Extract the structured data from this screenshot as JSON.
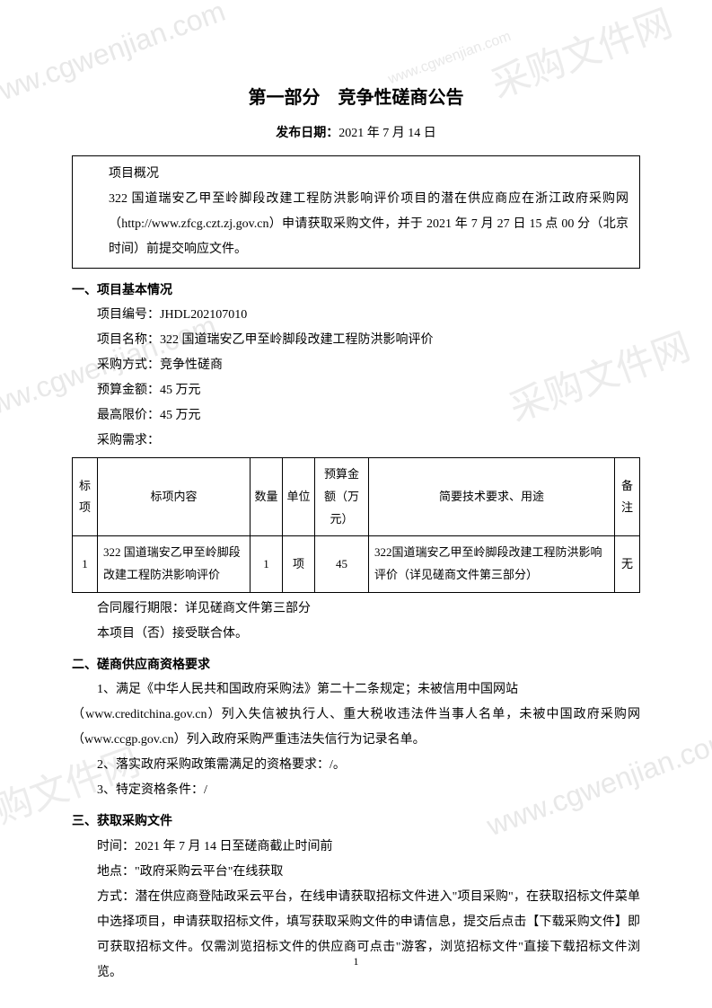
{
  "title": "第一部分　竞争性磋商公告",
  "publishLabel": "发布日期：",
  "publishDate": "2021 年 7 月 14 日",
  "overview": {
    "heading": "项目概况",
    "body": "322 国道瑞安乙甲至岭脚段改建工程防洪影响评价项目的潜在供应商应在浙江政府采购网（http://www.zfcg.czt.zj.gov.cn）申请获取采购文件，并于 2021 年 7 月 27 日 15 点 00 分（北京时间）前提交响应文件。"
  },
  "section1": {
    "heading": "一、项目基本情况",
    "projectNoLabel": "项目编号：",
    "projectNo": "JHDL202107010",
    "projectNameLabel": "项目名称：",
    "projectName": "322 国道瑞安乙甲至岭脚段改建工程防洪影响评价",
    "methodLabel": "采购方式：",
    "method": "竞争性磋商",
    "budgetLabel": "预算金额：",
    "budget": "45 万元",
    "maxLabel": "最高限价：",
    "max": "45 万元",
    "needsLabel": "采购需求：",
    "table": {
      "headers": {
        "id": "标项",
        "content": "标项内容",
        "qty": "数量",
        "unit": "单位",
        "budget": "预算金额（万元）",
        "tech": "简要技术要求、用途",
        "note": "备注"
      },
      "row": {
        "id": "1",
        "content": "322 国道瑞安乙甲至岭脚段改建工程防洪影响评价",
        "qty": "1",
        "unit": "项",
        "budget": "45",
        "tech": "322国道瑞安乙甲至岭脚段改建工程防洪影响评价（详见磋商文件第三部分）",
        "note": "无"
      }
    },
    "contractPeriod": "合同履行期限：详见磋商文件第三部分",
    "consortium": "本项目（否）接受联合体。"
  },
  "section2": {
    "heading": "二、磋商供应商资格要求",
    "item1a": "1、满足《中华人民共和国政府采购法》第二十二条规定；未被信用中国网站",
    "item1b": "（www.creditchina.gov.cn）列入失信被执行人、重大税收违法件当事人名单，未被中国政府采购网（www.ccgp.gov.cn）列入政府采购严重违法失信行为记录名单。",
    "item2": "2、落实政府采购政策需满足的资格要求：/。",
    "item3": "3、特定资格条件：/"
  },
  "section3": {
    "heading": "三、获取采购文件",
    "time": "时间：2021 年 7 月 14 日至磋商截止时间前",
    "place": "地点：\"政府采购云平台\"在线获取",
    "method": "方式：潜在供应商登陆政采云平台，在线申请获取招标文件进入\"项目采购\"，在获取招标文件菜单中选择项目，申请获取招标文件，填写获取采购文件的申请信息，提交后点击【下载采购文件】即可获取招标文件。仅需浏览招标文件的供应商可点击\"游客，浏览招标文件\"直接下载招标文件浏览。"
  },
  "pageNumber": "1",
  "watermark": "采购文件网",
  "watermarkUrl": "www.cgwenjian.com"
}
